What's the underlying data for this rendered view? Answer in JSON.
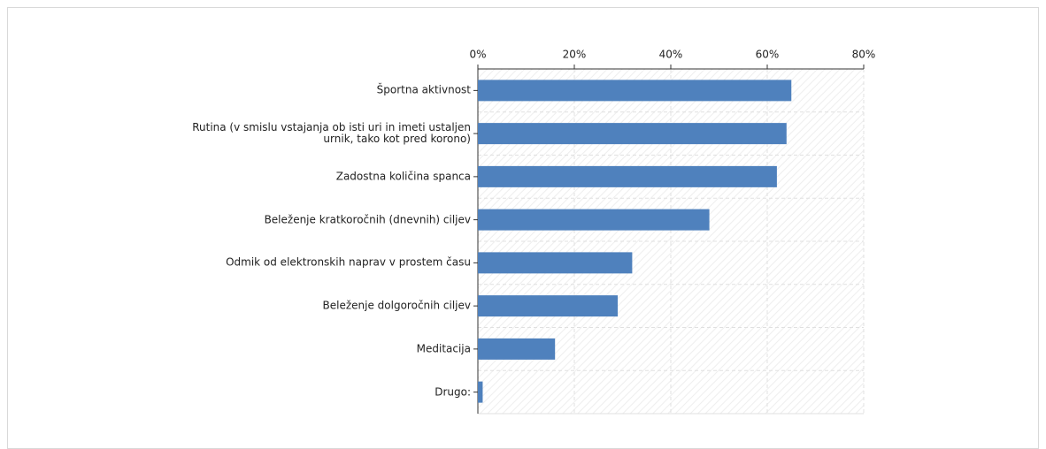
{
  "chart_data": {
    "type": "bar",
    "orientation": "horizontal",
    "categories": [
      "Športna aktivnost",
      "Rutina (v smislu vstajanja ob isti uri in imeti ustaljen\nurnik, tako kot pred korono)",
      "Zadostna količina spanca",
      "Beleženje kratkoročnih (dnevnih) ciljev ",
      "Odmik od elektronskih naprav v prostem času",
      "Beleženje dolgoročnih ciljev",
      "Meditacija",
      "Drugo:"
    ],
    "values": [
      65,
      64,
      62,
      48,
      32,
      29,
      16,
      1
    ],
    "color": "#4f81bd",
    "xlim": [
      0,
      80
    ],
    "xticks": [
      {
        "value": 0,
        "label": "0%"
      },
      {
        "value": 20,
        "label": "20%"
      },
      {
        "value": 40,
        "label": "40%"
      },
      {
        "value": 60,
        "label": "60%"
      },
      {
        "value": 80,
        "label": "80%"
      }
    ],
    "grid": true
  }
}
